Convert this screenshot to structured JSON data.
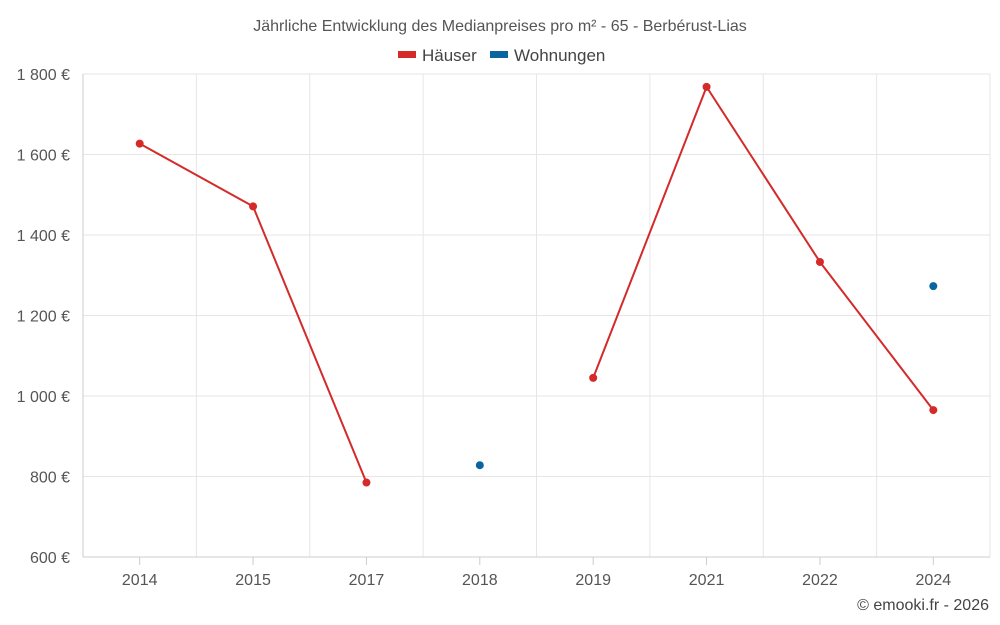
{
  "chart_data": {
    "type": "line",
    "title": "Jährliche Entwicklung des Medianpreises pro m² - 65 - Berbérust-Lias",
    "categories": [
      "2014",
      "2015",
      "2017",
      "2018",
      "2019",
      "2021",
      "2022",
      "2024"
    ],
    "ylim": [
      600,
      1800
    ],
    "yticks": [
      600,
      800,
      1000,
      1200,
      1400,
      1600,
      1800
    ],
    "ytick_labels": [
      "600 €",
      "800 €",
      "1 000 €",
      "1 200 €",
      "1 400 €",
      "1 600 €",
      "1 800 €"
    ],
    "xlabel": "",
    "ylabel": "",
    "grid": true,
    "legend_position": "top-center",
    "series": [
      {
        "name": "Häuser",
        "color": "#d42a2a",
        "values": [
          1627,
          1471,
          785,
          null,
          1045,
          1768,
          1333,
          965
        ]
      },
      {
        "name": "Wohnungen",
        "color": "#0a64a0",
        "values": [
          null,
          null,
          null,
          828,
          null,
          null,
          null,
          1273
        ]
      }
    ]
  },
  "credit": "© emooki.fr - 2026"
}
